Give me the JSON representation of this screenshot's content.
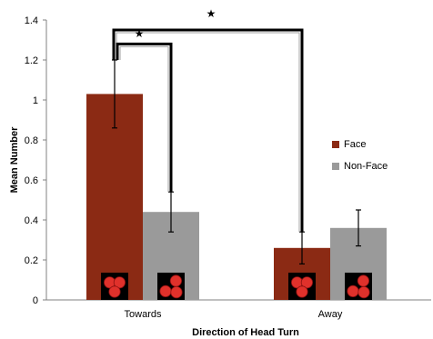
{
  "chart_data": {
    "type": "bar",
    "categories": [
      "Towards",
      "Away"
    ],
    "series": [
      {
        "name": "Face",
        "color": "#8B2A14",
        "values": [
          1.03,
          0.26
        ],
        "errors": [
          0.17,
          0.08
        ]
      },
      {
        "name": "Non-Face",
        "color": "#9A9A9A",
        "values": [
          0.44,
          0.36
        ],
        "errors": [
          0.1,
          0.09
        ]
      }
    ],
    "xlabel": "Direction of Head Turn",
    "ylabel": "Mean Number",
    "ylim": [
      0,
      1.4
    ],
    "yticks": [
      "0",
      "0.2",
      "0.4",
      "0.6",
      "0.8",
      "1",
      "1.2",
      "1.4"
    ],
    "grid": false,
    "legend_position": "right",
    "significance": [
      {
        "label": "★",
        "between": [
          "Towards / Face",
          "Towards / Non-Face"
        ]
      },
      {
        "label": "★",
        "between": [
          "Towards / Face",
          "Away / Face"
        ]
      }
    ],
    "stimulus_icons": [
      "three-dot-face-icon",
      "three-dot-nonface-icon"
    ]
  }
}
